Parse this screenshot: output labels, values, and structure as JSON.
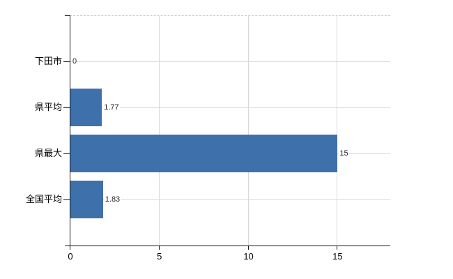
{
  "chart_data": {
    "type": "bar",
    "orientation": "horizontal",
    "title": "",
    "categories": [
      "下田市",
      "県平均",
      "県最大",
      "全国平均"
    ],
    "values": [
      0,
      1.77,
      15,
      1.83
    ],
    "value_labels": [
      "0",
      "1.77",
      "15",
      "1.83"
    ],
    "x_ticks": [
      0,
      5,
      10,
      15
    ],
    "x_tick_labels": [
      "0",
      "5",
      "10",
      "15"
    ],
    "xlim": [
      0,
      18
    ],
    "grid": true,
    "legend": false,
    "layout_hints": {
      "plot_border_top": "dashed",
      "row_gridlines": true,
      "value_labels_outside_bar_end": true
    },
    "colors": {
      "bar": "#3e70ac",
      "axis": "#161616",
      "grid": "#d8d8d8",
      "plot_border": "#c6c6c6",
      "value_text": "#222222",
      "label_text": "#000000",
      "background": "#ffffff"
    }
  }
}
